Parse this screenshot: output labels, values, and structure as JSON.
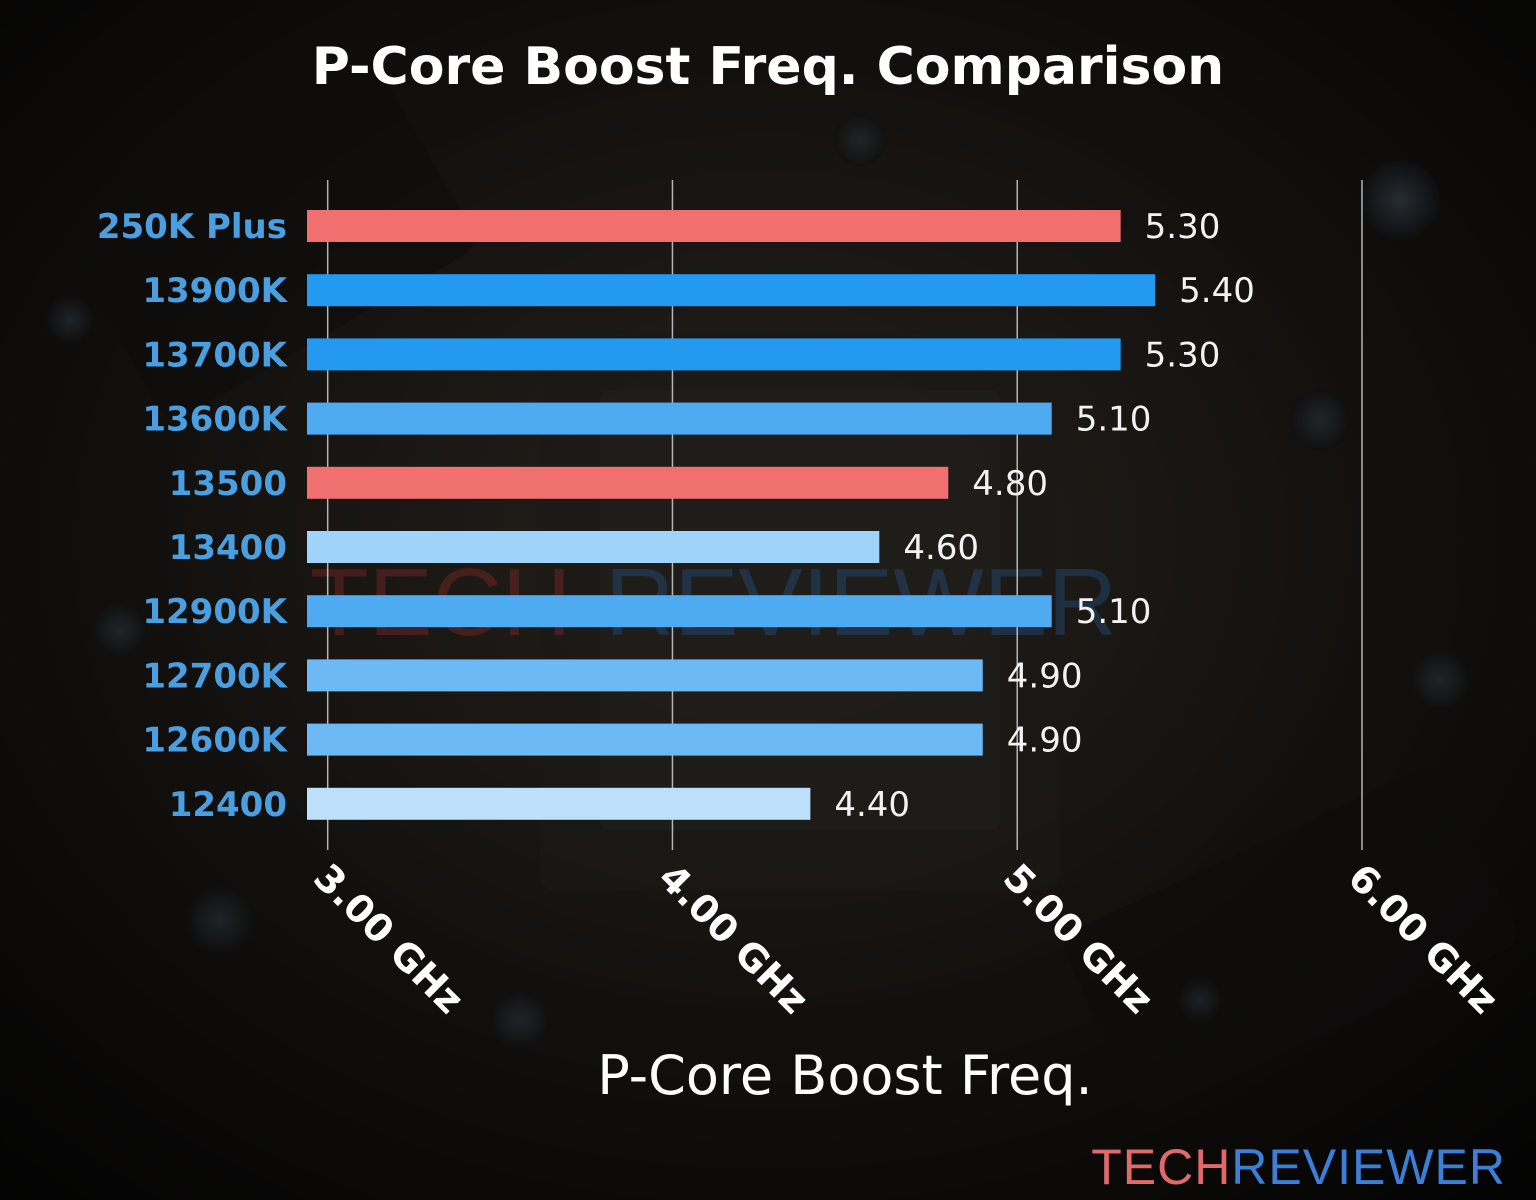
{
  "colors": {
    "red": "#f07070",
    "blue_dark": "#2399f0",
    "blue_mid": "#4eabf2",
    "blue_light": "#6db9f5",
    "blue_pale": "#a0d3fa",
    "blue_palest": "#bce0fc",
    "category_label": "#4a9fe0",
    "logo_tech": "#e06a6a",
    "logo_reviewer": "#3b7fd6"
  },
  "brand": {
    "tech": "TECH",
    "reviewer": "REVIEWER"
  },
  "chart_data": {
    "type": "bar",
    "orientation": "horizontal",
    "title": "P-Core Boost Freq. Comparison",
    "xlabel": "P-Core Boost Freq.",
    "ylabel": "",
    "xlim": [
      2.94,
      6.0
    ],
    "x_ticks": [
      3.0,
      4.0,
      5.0,
      6.0
    ],
    "x_tick_labels": [
      "3.00 GHz",
      "4.00 GHz",
      "5.00 GHz",
      "6.00 GHz"
    ],
    "grid": "vertical",
    "categories": [
      "250K Plus",
      "13900K",
      "13700K",
      "13600K",
      "13500",
      "13400",
      "12900K",
      "12700K",
      "12600K",
      "12400"
    ],
    "values": [
      5.3,
      5.4,
      5.3,
      5.1,
      4.8,
      4.6,
      5.1,
      4.9,
      4.9,
      4.4
    ],
    "value_labels": [
      "5.30",
      "5.40",
      "5.30",
      "5.10",
      "4.80",
      "4.60",
      "5.10",
      "4.90",
      "4.90",
      "4.40"
    ],
    "bar_colors": [
      "red",
      "blue_dark",
      "blue_dark",
      "blue_mid",
      "red",
      "blue_pale",
      "blue_mid",
      "blue_light",
      "blue_light",
      "blue_palest"
    ]
  }
}
